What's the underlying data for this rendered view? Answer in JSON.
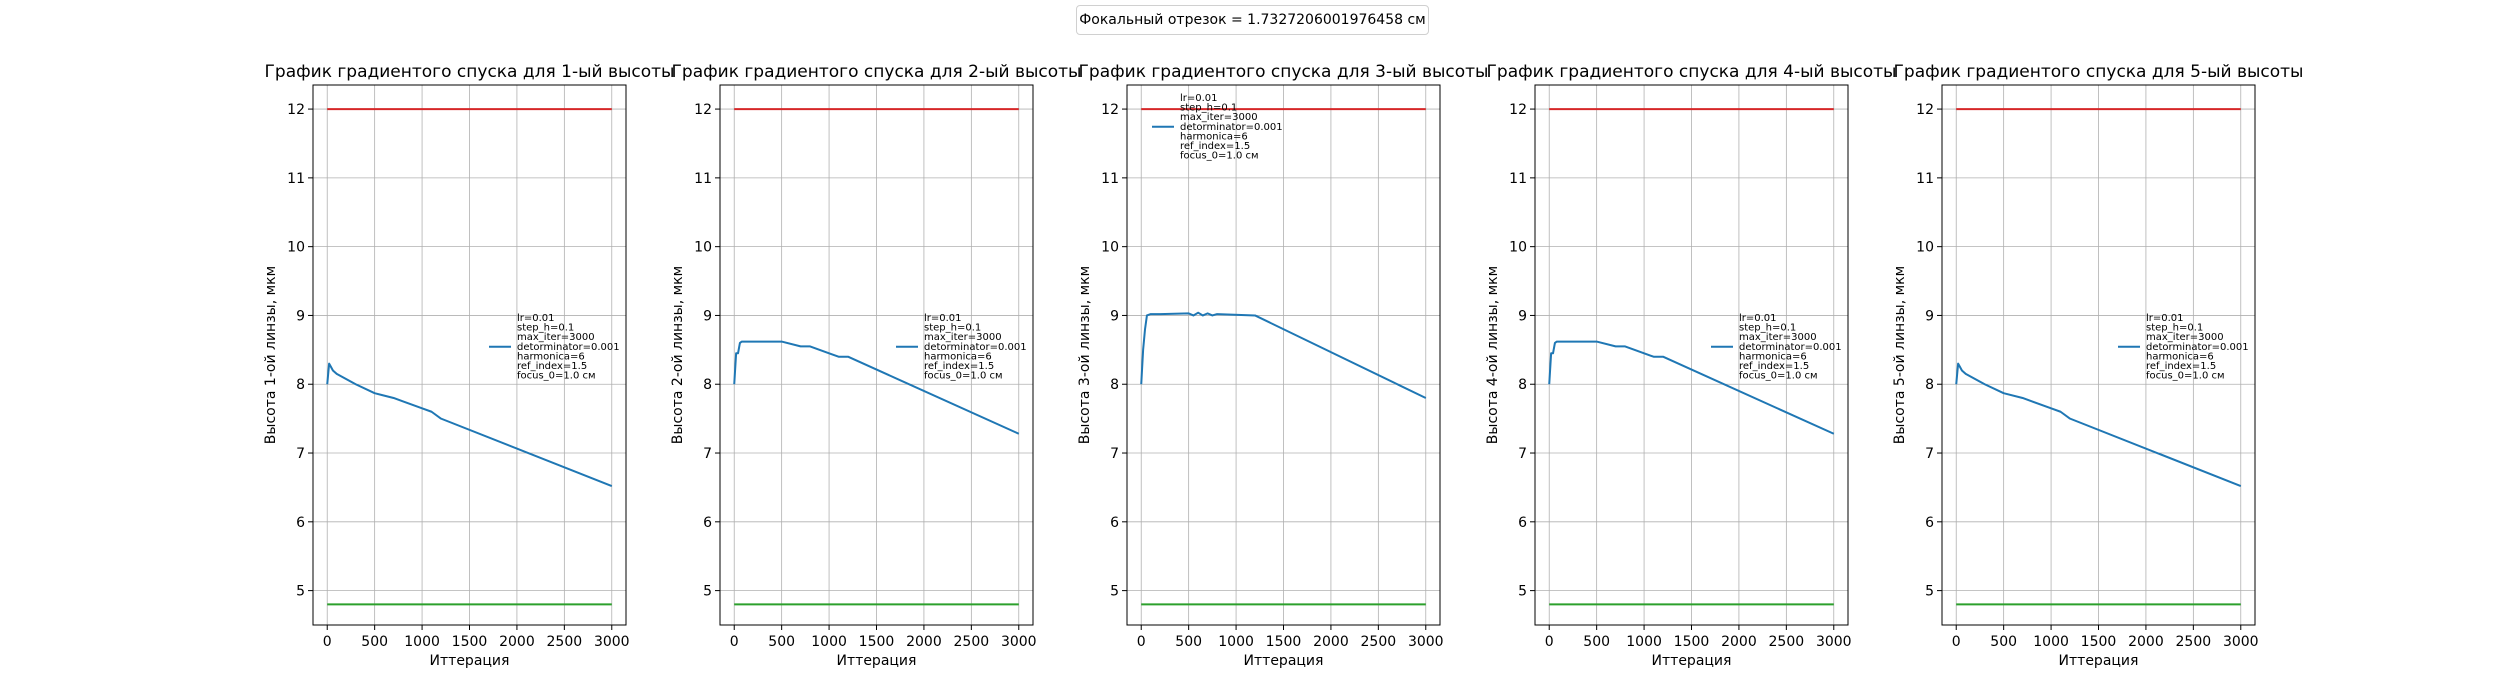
{
  "figure": {
    "suptitle": "Фокальный отрезок = 1.7327206001976458 см"
  },
  "chart_data": [
    {
      "type": "line",
      "title": "График градиентого спуска для 1-ый высоты",
      "xlabel": "Иттерация",
      "ylabel": "Высота 1-ой линзы, мкм",
      "xlim": [
        -150,
        3150
      ],
      "ylim": [
        4.5,
        12.35
      ],
      "xticks": [
        0,
        500,
        1000,
        1500,
        2000,
        2500,
        3000
      ],
      "yticks": [
        5,
        6,
        7,
        8,
        9,
        10,
        11,
        12
      ],
      "grid": true,
      "legend_position": "center-right",
      "legend_lines": [
        "lr=0.01",
        "step_h=0.1",
        "max_iter=3000",
        "detorminator=0.001",
        "harmonica=6",
        "ref_index=1.5",
        "focus_0=1.0 см"
      ],
      "series": [
        {
          "color": "#1f77b4",
          "x": [
            0,
            20,
            40,
            60,
            100,
            300,
            500,
            700,
            800,
            1000,
            1100,
            1200,
            3000
          ],
          "y": [
            8.0,
            8.3,
            8.25,
            8.2,
            8.15,
            8.0,
            7.87,
            7.8,
            7.75,
            7.65,
            7.6,
            7.5,
            6.52
          ]
        },
        {
          "color": "#d62728",
          "x": [
            0,
            3000
          ],
          "y": [
            12.0,
            12.0
          ]
        },
        {
          "color": "#2ca02c",
          "x": [
            0,
            3000
          ],
          "y": [
            4.8,
            4.8
          ]
        }
      ]
    },
    {
      "type": "line",
      "title": "График градиентого спуска для 2-ый высоты",
      "xlabel": "Иттерация",
      "ylabel": "Высота 2-ой линзы, мкм",
      "xlim": [
        -150,
        3150
      ],
      "ylim": [
        4.5,
        12.35
      ],
      "xticks": [
        0,
        500,
        1000,
        1500,
        2000,
        2500,
        3000
      ],
      "yticks": [
        5,
        6,
        7,
        8,
        9,
        10,
        11,
        12
      ],
      "grid": true,
      "legend_position": "center-right",
      "legend_lines": [
        "lr=0.01",
        "step_h=0.1",
        "max_iter=3000",
        "detorminator=0.001",
        "harmonica=6",
        "ref_index=1.5",
        "focus_0=1.0 см"
      ],
      "series": [
        {
          "color": "#1f77b4",
          "x": [
            0,
            20,
            40,
            60,
            80,
            500,
            700,
            800,
            1000,
            1100,
            1200,
            3000
          ],
          "y": [
            8.0,
            8.45,
            8.45,
            8.6,
            8.62,
            8.62,
            8.55,
            8.55,
            8.45,
            8.4,
            8.4,
            7.28
          ]
        },
        {
          "color": "#d62728",
          "x": [
            0,
            3000
          ],
          "y": [
            12.0,
            12.0
          ]
        },
        {
          "color": "#2ca02c",
          "x": [
            0,
            3000
          ],
          "y": [
            4.8,
            4.8
          ]
        }
      ]
    },
    {
      "type": "line",
      "title": "График градиентого спуска для 3-ый высоты",
      "xlabel": "Иттерация",
      "ylabel": "Высота 3-ой линзы, мкм",
      "xlim": [
        -150,
        3150
      ],
      "ylim": [
        4.5,
        12.35
      ],
      "xticks": [
        0,
        500,
        1000,
        1500,
        2000,
        2500,
        3000
      ],
      "yticks": [
        5,
        6,
        7,
        8,
        9,
        10,
        11,
        12
      ],
      "grid": true,
      "legend_position": "upper-left",
      "legend_lines": [
        "lr=0.01",
        "step_h=0.1",
        "max_iter=3000",
        "detorminator=0.001",
        "harmonica=6",
        "ref_index=1.5",
        "focus_0=1.0 см"
      ],
      "series": [
        {
          "color": "#1f77b4",
          "x": [
            0,
            20,
            40,
            60,
            100,
            200,
            500,
            550,
            600,
            650,
            700,
            750,
            800,
            1200,
            3000
          ],
          "y": [
            8.0,
            8.5,
            8.8,
            9.0,
            9.02,
            9.02,
            9.03,
            9.0,
            9.04,
            9.0,
            9.03,
            9.0,
            9.02,
            9.0,
            7.8
          ]
        },
        {
          "color": "#d62728",
          "x": [
            0,
            3000
          ],
          "y": [
            12.0,
            12.0
          ]
        },
        {
          "color": "#2ca02c",
          "x": [
            0,
            3000
          ],
          "y": [
            4.8,
            4.8
          ]
        }
      ]
    },
    {
      "type": "line",
      "title": "График градиентого спуска для 4-ый высоты",
      "xlabel": "Иттерация",
      "ylabel": "Высота 4-ой линзы, мкм",
      "xlim": [
        -150,
        3150
      ],
      "ylim": [
        4.5,
        12.35
      ],
      "xticks": [
        0,
        500,
        1000,
        1500,
        2000,
        2500,
        3000
      ],
      "yticks": [
        5,
        6,
        7,
        8,
        9,
        10,
        11,
        12
      ],
      "grid": true,
      "legend_position": "center-right",
      "legend_lines": [
        "lr=0.01",
        "step_h=0.1",
        "max_iter=3000",
        "detorminator=0.001",
        "harmonica=6",
        "ref_index=1.5",
        "focus_0=1.0 см"
      ],
      "series": [
        {
          "color": "#1f77b4",
          "x": [
            0,
            20,
            40,
            60,
            80,
            500,
            700,
            800,
            1000,
            1100,
            1200,
            3000
          ],
          "y": [
            8.0,
            8.45,
            8.45,
            8.6,
            8.62,
            8.62,
            8.55,
            8.55,
            8.45,
            8.4,
            8.4,
            7.28
          ]
        },
        {
          "color": "#d62728",
          "x": [
            0,
            3000
          ],
          "y": [
            12.0,
            12.0
          ]
        },
        {
          "color": "#2ca02c",
          "x": [
            0,
            3000
          ],
          "y": [
            4.8,
            4.8
          ]
        }
      ]
    },
    {
      "type": "line",
      "title": "График градиентого спуска для 5-ый высоты",
      "xlabel": "Иттерация",
      "ylabel": "Высота 5-ой линзы, мкм",
      "xlim": [
        -150,
        3150
      ],
      "ylim": [
        4.5,
        12.35
      ],
      "xticks": [
        0,
        500,
        1000,
        1500,
        2000,
        2500,
        3000
      ],
      "yticks": [
        5,
        6,
        7,
        8,
        9,
        10,
        11,
        12
      ],
      "grid": true,
      "legend_position": "center-right",
      "legend_lines": [
        "lr=0.01",
        "step_h=0.1",
        "max_iter=3000",
        "detorminator=0.001",
        "harmonica=6",
        "ref_index=1.5",
        "focus_0=1.0 см"
      ],
      "series": [
        {
          "color": "#1f77b4",
          "x": [
            0,
            20,
            40,
            60,
            100,
            300,
            500,
            700,
            800,
            1000,
            1100,
            1200,
            3000
          ],
          "y": [
            8.0,
            8.3,
            8.25,
            8.2,
            8.15,
            8.0,
            7.87,
            7.8,
            7.75,
            7.65,
            7.6,
            7.5,
            6.52
          ]
        },
        {
          "color": "#d62728",
          "x": [
            0,
            3000
          ],
          "y": [
            12.0,
            12.0
          ]
        },
        {
          "color": "#2ca02c",
          "x": [
            0,
            3000
          ],
          "y": [
            4.8,
            4.8
          ]
        }
      ]
    }
  ]
}
